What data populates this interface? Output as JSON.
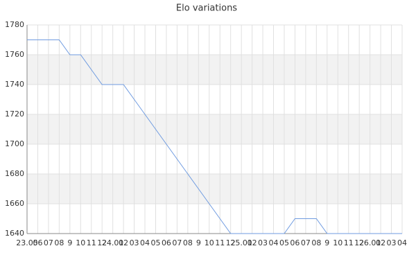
{
  "chart_data": {
    "type": "line",
    "title": "Elo variations",
    "categories": [
      "23.05",
      "06",
      "07",
      "08",
      "9",
      "10",
      "11",
      "12",
      "24.01",
      "02",
      "03",
      "04",
      "05",
      "06",
      "07",
      "08",
      "9",
      "10",
      "11",
      "12",
      "25.01",
      "02",
      "03",
      "04",
      "05",
      "06",
      "07",
      "08",
      "9",
      "10",
      "11",
      "12",
      "26.01",
      "02",
      "03",
      "04"
    ],
    "series": [
      {
        "name": "Elo",
        "color": "#6f9be0",
        "values": [
          1770,
          1770,
          1770,
          1770,
          1760,
          1760,
          1750,
          1740,
          1740,
          1740,
          1730,
          1720,
          1710,
          1700,
          1690,
          1680,
          1670,
          1660,
          1650,
          1640,
          1640,
          1640,
          1640,
          1640,
          1640,
          1650,
          1650,
          1650,
          1640,
          1640,
          1640,
          1640,
          1640,
          1640,
          1640,
          1640
        ]
      }
    ],
    "ylim": [
      1640,
      1780
    ],
    "yticks": [
      1640,
      1660,
      1680,
      1700,
      1720,
      1740,
      1760,
      1780
    ],
    "grid": true
  }
}
